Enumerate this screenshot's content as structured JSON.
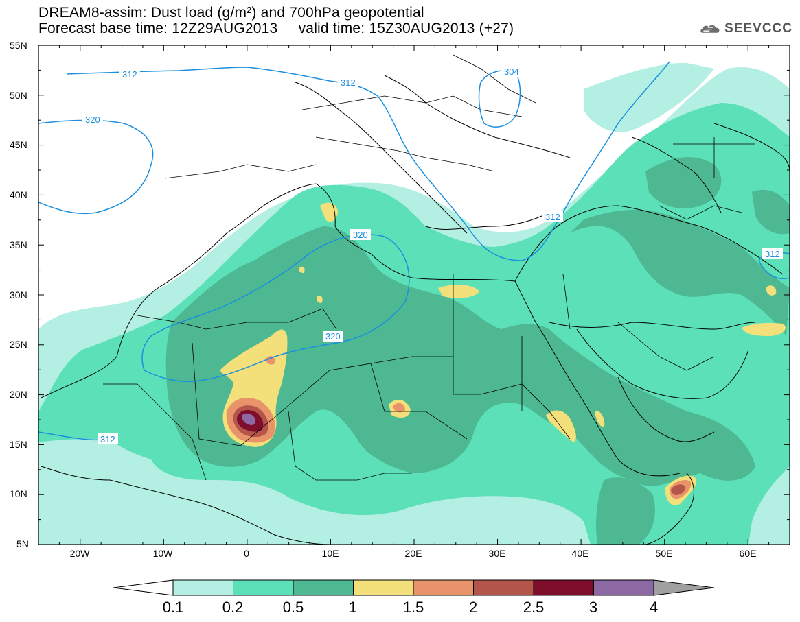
{
  "header": {
    "title_line1": "DREAM8-assim: Dust load (g/m²) and 700hPa geopotential",
    "base_time": "Forecast base time: 12Z29AUG2013",
    "valid_time": "valid time: 15Z30AUG2013 (+27)"
  },
  "logo": {
    "text": "SEEVCCC",
    "icon": "cloud-logo-icon"
  },
  "axes": {
    "lat_labels": [
      "55N",
      "50N",
      "45N",
      "40N",
      "35N",
      "30N",
      "25N",
      "20N",
      "15N",
      "10N",
      "5N"
    ],
    "lon_labels": [
      "20W",
      "10W",
      "0",
      "10E",
      "20E",
      "30E",
      "40E",
      "50E",
      "60E"
    ]
  },
  "contours": {
    "labels": [
      "312",
      "312",
      "320",
      "304",
      "312",
      "320",
      "320",
      "312",
      "312"
    ],
    "color": "#1a8fe0"
  },
  "colorbar": {
    "ticks": [
      "0.1",
      "0.2",
      "0.5",
      "1",
      "1.5",
      "2",
      "2.5",
      "3",
      "4"
    ],
    "colors": [
      "#b4efe3",
      "#5ce0b8",
      "#4db892",
      "#f3e07a",
      "#e9936a",
      "#b3554a",
      "#7e0e2c",
      "#8d69a3"
    ],
    "under_color": "#ffffff",
    "over_color": "#a0a0a0"
  },
  "legend": {
    "levels": [
      {
        "min": 0.1,
        "max": 0.2,
        "color": "#b4efe3"
      },
      {
        "min": 0.2,
        "max": 0.5,
        "color": "#5ce0b8"
      },
      {
        "min": 0.5,
        "max": 1,
        "color": "#4db892"
      },
      {
        "min": 1,
        "max": 1.5,
        "color": "#f3e07a"
      },
      {
        "min": 1.5,
        "max": 2,
        "color": "#e9936a"
      },
      {
        "min": 2,
        "max": 2.5,
        "color": "#b3554a"
      },
      {
        "min": 2.5,
        "max": 3,
        "color": "#7e0e2c"
      },
      {
        "min": 3,
        "max": 4,
        "color": "#8d69a3"
      }
    ]
  }
}
